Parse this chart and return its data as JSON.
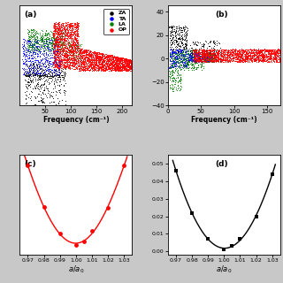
{
  "panel_a": {
    "label": "(a)",
    "xlabel": "Frequency (cm⁻¹)",
    "xlim": [
      0,
      220
    ],
    "ylim": [
      -0.5,
      1.0
    ],
    "xticks": [
      50,
      100,
      150,
      200
    ],
    "yticks": []
  },
  "panel_b": {
    "label": "(b)",
    "xlabel": "Frequency (cm⁻¹)",
    "xlim": [
      0,
      170
    ],
    "ylim": [
      -40,
      45
    ],
    "xticks": [
      0,
      50,
      100,
      150
    ],
    "yticks": [
      -40,
      -20,
      0,
      20,
      40
    ]
  },
  "panel_c": {
    "label": "(c)",
    "xlabel": "a/a₀",
    "xlim": [
      0.965,
      1.035
    ],
    "ylim": [
      -0.02,
      0.22
    ],
    "xticks": [
      0.97,
      0.98,
      0.99,
      1.0,
      1.01,
      1.02,
      1.03
    ],
    "yticks": [],
    "x_data": [
      0.97,
      0.98,
      0.99,
      1.0,
      1.005,
      1.01,
      1.02,
      1.03
    ],
    "y_data": [
      0.195,
      0.095,
      0.032,
      0.003,
      0.012,
      0.038,
      0.093,
      0.195
    ]
  },
  "panel_d": {
    "label": "(d)",
    "xlabel": "a/a₀",
    "xlim": [
      0.965,
      1.035
    ],
    "ylim": [
      -0.002,
      0.055
    ],
    "xticks": [
      0.97,
      0.98,
      0.99,
      1.0,
      1.01,
      1.02,
      1.03
    ],
    "yticks": [
      0.0,
      0.01,
      0.02,
      0.03,
      0.04,
      0.05
    ],
    "x_data": [
      0.97,
      0.98,
      0.99,
      1.0,
      1.005,
      1.01,
      1.02,
      1.03
    ],
    "y_data": [
      0.046,
      0.022,
      0.007,
      0.001,
      0.003,
      0.007,
      0.02,
      0.044
    ]
  },
  "legend": {
    "labels": [
      "ZA",
      "TA",
      "LA",
      "OP"
    ],
    "colors": [
      "black",
      "blue",
      "green",
      "red"
    ]
  },
  "bg_color": "#c8c8c8",
  "ax_bg": "white"
}
